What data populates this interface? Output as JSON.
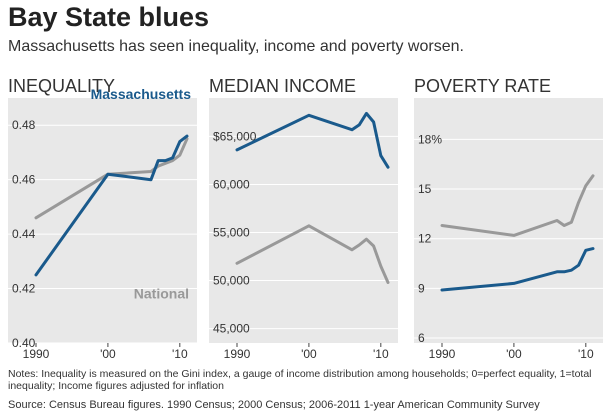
{
  "title": "Bay State blues",
  "subtitle": "Massachusetts has seen inequality, income and poverty worsen.",
  "notes": "Notes: Inequality is measured on the Gini index, a gauge of income distribution among households; 0=perfect equality, 1=total inequality; Income figures adjusted for inflation",
  "source": "Source:  Census Bureau figures. 1990 Census; 2000 Census; 2006-2011 1-year American Community Survey",
  "colors": {
    "massachusetts": "#1a5a8c",
    "national": "#999999",
    "panel_bg": "#e8e8e8"
  },
  "chart_data": [
    {
      "type": "line",
      "title": "INEQUALITY",
      "ylim": [
        0.4,
        0.49
      ],
      "yticks": [
        0.4,
        0.42,
        0.44,
        0.46,
        0.48
      ],
      "yticklabels": [
        "0.40",
        "0.42",
        "0.44",
        "0.46",
        "0.48"
      ],
      "xlim": [
        1990,
        2011
      ],
      "xticks": [
        1990,
        2000,
        2010
      ],
      "xticklabels": [
        "1990",
        "'00",
        "'10"
      ],
      "series": [
        {
          "name": "Massachusetts",
          "color": "#1a5a8c",
          "x": [
            1990,
            2000,
            2006,
            2007,
            2008,
            2009,
            2010,
            2011
          ],
          "y": [
            0.425,
            0.462,
            0.46,
            0.467,
            0.467,
            0.468,
            0.474,
            0.476
          ]
        },
        {
          "name": "National",
          "color": "#999999",
          "x": [
            1990,
            2000,
            2006,
            2007,
            2008,
            2009,
            2010,
            2011
          ],
          "y": [
            0.446,
            0.462,
            0.463,
            0.465,
            0.466,
            0.467,
            0.469,
            0.475
          ]
        }
      ]
    },
    {
      "type": "line",
      "title": "MEDIAN INCOME",
      "ylim": [
        43500,
        69000
      ],
      "yticks": [
        45000,
        50000,
        55000,
        60000,
        65000
      ],
      "yticklabels": [
        "45,000",
        "50,000",
        "55,000",
        "60,000",
        "$65,000"
      ],
      "xlim": [
        1990,
        2011
      ],
      "xticks": [
        1990,
        2000,
        2010
      ],
      "xticklabels": [
        "1990",
        "'00",
        "'10"
      ],
      "series": [
        {
          "color": "#1a5a8c",
          "x": [
            1990,
            2000,
            2006,
            2007,
            2008,
            2009,
            2010,
            2011
          ],
          "y": [
            63600,
            67200,
            65700,
            66200,
            67400,
            66500,
            63000,
            61800
          ]
        },
        {
          "color": "#999999",
          "x": [
            1990,
            2000,
            2006,
            2007,
            2008,
            2009,
            2010,
            2011
          ],
          "y": [
            51800,
            55700,
            53200,
            53700,
            54300,
            53600,
            51500,
            49800
          ]
        }
      ]
    },
    {
      "type": "line",
      "title": "POVERTY RATE",
      "ylim": [
        5.7,
        20.5
      ],
      "yticks": [
        6,
        9,
        12,
        15,
        18
      ],
      "yticklabels": [
        "6",
        "9",
        "12",
        "15",
        "18%"
      ],
      "xlim": [
        1990,
        2011
      ],
      "xticks": [
        1990,
        2000,
        2010
      ],
      "xticklabels": [
        "1990",
        "'00",
        "'10"
      ],
      "series": [
        {
          "color": "#1a5a8c",
          "x": [
            1990,
            2000,
            2006,
            2007,
            2008,
            2009,
            2010,
            2011
          ],
          "y": [
            8.9,
            9.3,
            10.0,
            10.0,
            10.1,
            10.4,
            11.3,
            11.4
          ]
        },
        {
          "color": "#999999",
          "x": [
            1990,
            2000,
            2006,
            2007,
            2008,
            2009,
            2010,
            2011
          ],
          "y": [
            12.8,
            12.2,
            13.1,
            12.8,
            13.0,
            14.2,
            15.2,
            15.8
          ]
        }
      ]
    }
  ]
}
